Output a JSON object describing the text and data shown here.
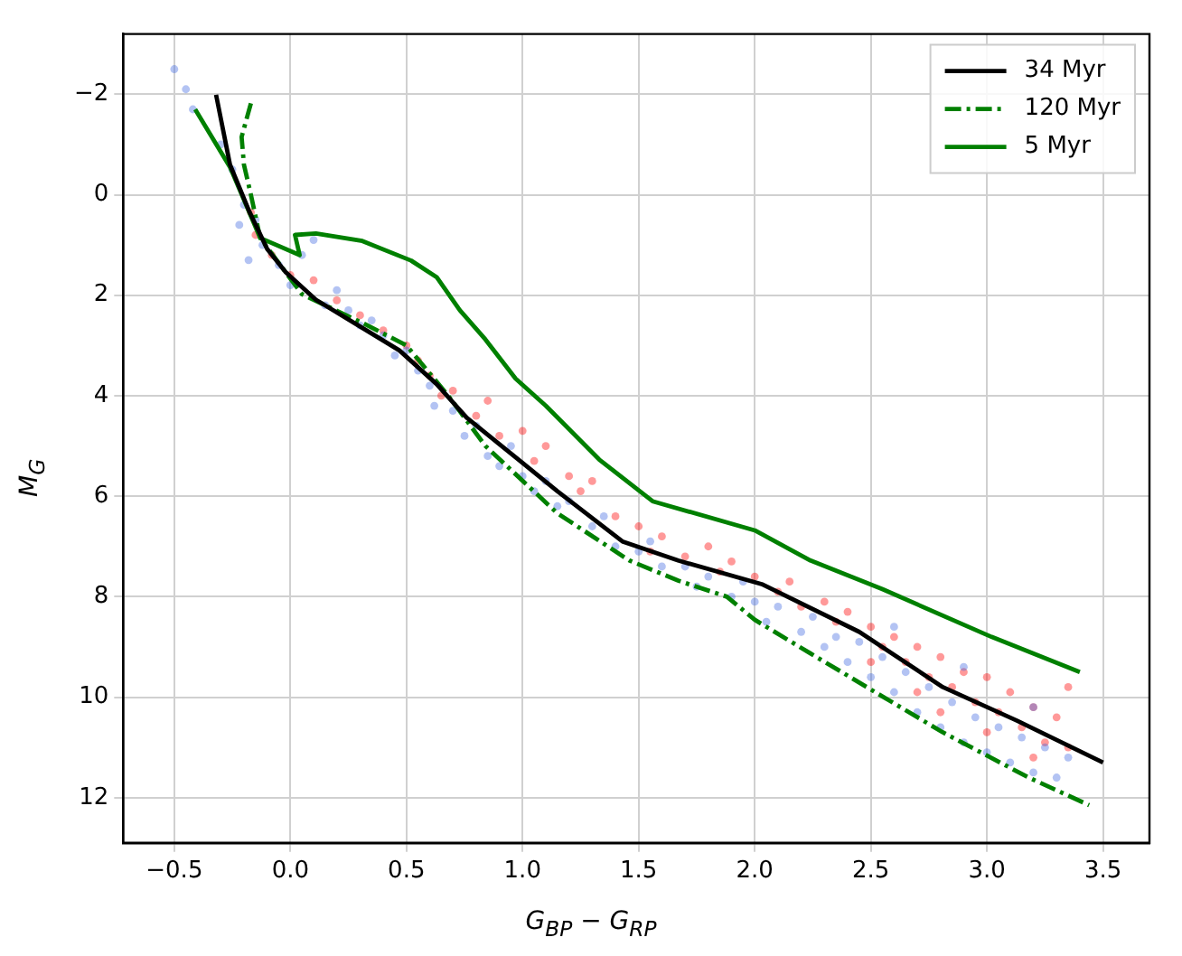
{
  "chart_data": {
    "type": "line",
    "xlabel": "G$_{BP}$ − G$_{RP}$",
    "ylabel": "M$_{G}$",
    "xlim": [
      -0.72,
      3.7
    ],
    "ylim": [
      12.9,
      -3.2
    ],
    "xticks": [
      {
        "value": -0.5,
        "label": "−0.5"
      },
      {
        "value": 0,
        "label": "0.0"
      },
      {
        "value": 0.5,
        "label": "0.5"
      },
      {
        "value": 1,
        "label": "1.0"
      },
      {
        "value": 1.5,
        "label": "1.5"
      },
      {
        "value": 2,
        "label": "2.0"
      },
      {
        "value": 2.5,
        "label": "2.5"
      },
      {
        "value": 3,
        "label": "3.0"
      },
      {
        "value": 3.5,
        "label": "3.5"
      }
    ],
    "yticks": [
      {
        "value": -2,
        "label": "−2"
      },
      0,
      2,
      4,
      6,
      8,
      10,
      12
    ],
    "grid": true,
    "legend": "top right",
    "series": [
      {
        "type": "scatter",
        "color": "#4169e1",
        "marker": "circle",
        "x": [
          -0.5,
          -0.45,
          -0.42,
          -0.3,
          -0.25,
          -0.2,
          -0.22,
          -0.15,
          -0.12,
          -0.18,
          -0.05,
          0.0,
          0.05,
          0.1,
          0.15,
          0.2,
          0.25,
          0.3,
          0.35,
          0.4,
          0.45,
          0.5,
          0.55,
          0.6,
          0.62,
          0.7,
          0.75,
          0.8,
          0.85,
          0.9,
          0.95,
          1.0,
          1.05,
          1.1,
          1.15,
          1.2,
          1.3,
          1.35,
          1.4,
          1.5,
          1.55,
          1.6,
          1.7,
          1.75,
          1.8,
          1.9,
          1.95,
          2.0,
          2.05,
          2.1,
          2.2,
          2.25,
          2.3,
          2.35,
          2.4,
          2.45,
          2.5,
          2.55,
          2.6,
          2.65,
          2.7,
          2.75,
          2.8,
          2.85,
          2.9,
          2.95,
          3.0,
          3.05,
          3.1,
          3.15,
          3.2,
          3.25,
          3.3,
          3.35,
          2.6,
          2.9,
          3.2
        ],
        "values": [
          -2.5,
          -2.1,
          -1.7,
          -1.0,
          -0.5,
          0.2,
          0.6,
          0.5,
          1.0,
          1.3,
          1.4,
          1.8,
          1.2,
          0.9,
          2.2,
          1.9,
          2.3,
          2.6,
          2.5,
          2.8,
          3.2,
          3.1,
          3.5,
          3.8,
          4.2,
          4.3,
          4.8,
          4.6,
          5.2,
          5.4,
          5.0,
          5.6,
          5.9,
          5.7,
          6.2,
          6.1,
          6.6,
          6.4,
          7.0,
          7.1,
          6.9,
          7.4,
          7.4,
          7.8,
          7.6,
          8.0,
          7.7,
          8.1,
          8.5,
          8.2,
          8.7,
          8.4,
          9.0,
          8.8,
          9.3,
          8.9,
          9.6,
          9.2,
          9.9,
          9.5,
          10.3,
          9.8,
          10.6,
          10.1,
          10.9,
          10.4,
          11.1,
          10.6,
          11.3,
          10.8,
          11.5,
          11.0,
          11.6,
          11.2,
          8.6,
          9.4,
          10.2
        ]
      },
      {
        "type": "scatter",
        "color": "#ff0000",
        "marker": "circle",
        "x": [
          -0.17,
          -0.15,
          -0.08,
          0.0,
          0.1,
          0.2,
          0.3,
          0.4,
          0.5,
          0.55,
          0.6,
          0.65,
          0.7,
          0.8,
          0.85,
          0.9,
          1.0,
          1.05,
          1.1,
          1.2,
          1.25,
          1.3,
          1.4,
          1.5,
          1.55,
          1.6,
          1.7,
          1.8,
          1.85,
          1.9,
          2.0,
          2.1,
          2.15,
          2.2,
          2.3,
          2.35,
          2.4,
          2.5,
          2.55,
          2.6,
          2.65,
          2.7,
          2.75,
          2.8,
          2.85,
          2.9,
          2.95,
          3.0,
          3.05,
          3.1,
          3.15,
          3.2,
          3.25,
          3.3,
          3.35,
          3.35,
          2.8,
          3.0,
          2.7,
          2.5,
          3.2
        ],
        "values": [
          0.35,
          0.8,
          1.2,
          1.6,
          1.7,
          2.1,
          2.4,
          2.7,
          3.0,
          3.3,
          3.6,
          4.0,
          3.9,
          4.4,
          4.1,
          4.8,
          4.7,
          5.3,
          5.0,
          5.6,
          5.9,
          5.7,
          6.4,
          6.6,
          7.1,
          6.8,
          7.2,
          7.0,
          7.5,
          7.3,
          7.6,
          7.9,
          7.7,
          8.2,
          8.1,
          8.5,
          8.3,
          8.6,
          9.0,
          8.8,
          9.3,
          9.0,
          9.6,
          9.2,
          9.8,
          9.5,
          10.1,
          9.6,
          10.3,
          9.9,
          10.6,
          10.2,
          10.9,
          10.4,
          11.0,
          9.8,
          10.3,
          10.7,
          9.9,
          9.3,
          11.2
        ]
      },
      {
        "name": "34 Myr",
        "color": "#000000",
        "line_style": "solid",
        "marker": "none",
        "x": [
          -0.32,
          -0.26,
          -0.18,
          -0.1,
          -0.02,
          0.11,
          0.31,
          0.47,
          0.63,
          0.76,
          0.91,
          1.15,
          1.43,
          1.67,
          2.03,
          2.45,
          2.81,
          3.13,
          3.5
        ],
        "values": [
          -1.99,
          -0.6,
          0.3,
          1.08,
          1.54,
          2.09,
          2.65,
          3.1,
          3.77,
          4.44,
          5.0,
          5.9,
          6.9,
          7.28,
          7.75,
          8.7,
          9.8,
          10.47,
          11.3
        ]
      },
      {
        "name": "120 Myr",
        "color": "#008000",
        "line_style": "dashed",
        "marker": "none",
        "x": [
          -0.17,
          -0.21,
          -0.2,
          -0.17,
          -0.13,
          0.05,
          0.31,
          0.5,
          0.68,
          0.84,
          1.15,
          1.46,
          1.67,
          1.88,
          2.0,
          2.24,
          2.53,
          2.81,
          3.18,
          3.44
        ],
        "values": [
          -1.82,
          -1.15,
          -0.6,
          0,
          0.86,
          1.98,
          2.55,
          3.0,
          4.0,
          5.0,
          6.34,
          7.28,
          7.68,
          8.0,
          8.46,
          9.13,
          9.93,
          10.7,
          11.6,
          12.15
        ]
      },
      {
        "name": "5 Myr",
        "color": "#008000",
        "line_style": "solid",
        "marker": "none",
        "x": [
          -0.41,
          -0.26,
          -0.13,
          0.04,
          0.02,
          0.11,
          0.31,
          0.52,
          0.63,
          0.73,
          0.84,
          0.97,
          1.1,
          1.33,
          1.56,
          2.0,
          2.24,
          2.55,
          3.02,
          3.4
        ],
        "values": [
          -1.7,
          -0.55,
          0.86,
          1.2,
          0.8,
          0.77,
          0.92,
          1.31,
          1.64,
          2.3,
          2.88,
          3.66,
          4.2,
          5.27,
          6.1,
          6.68,
          7.28,
          7.85,
          8.8,
          9.5
        ]
      }
    ]
  }
}
